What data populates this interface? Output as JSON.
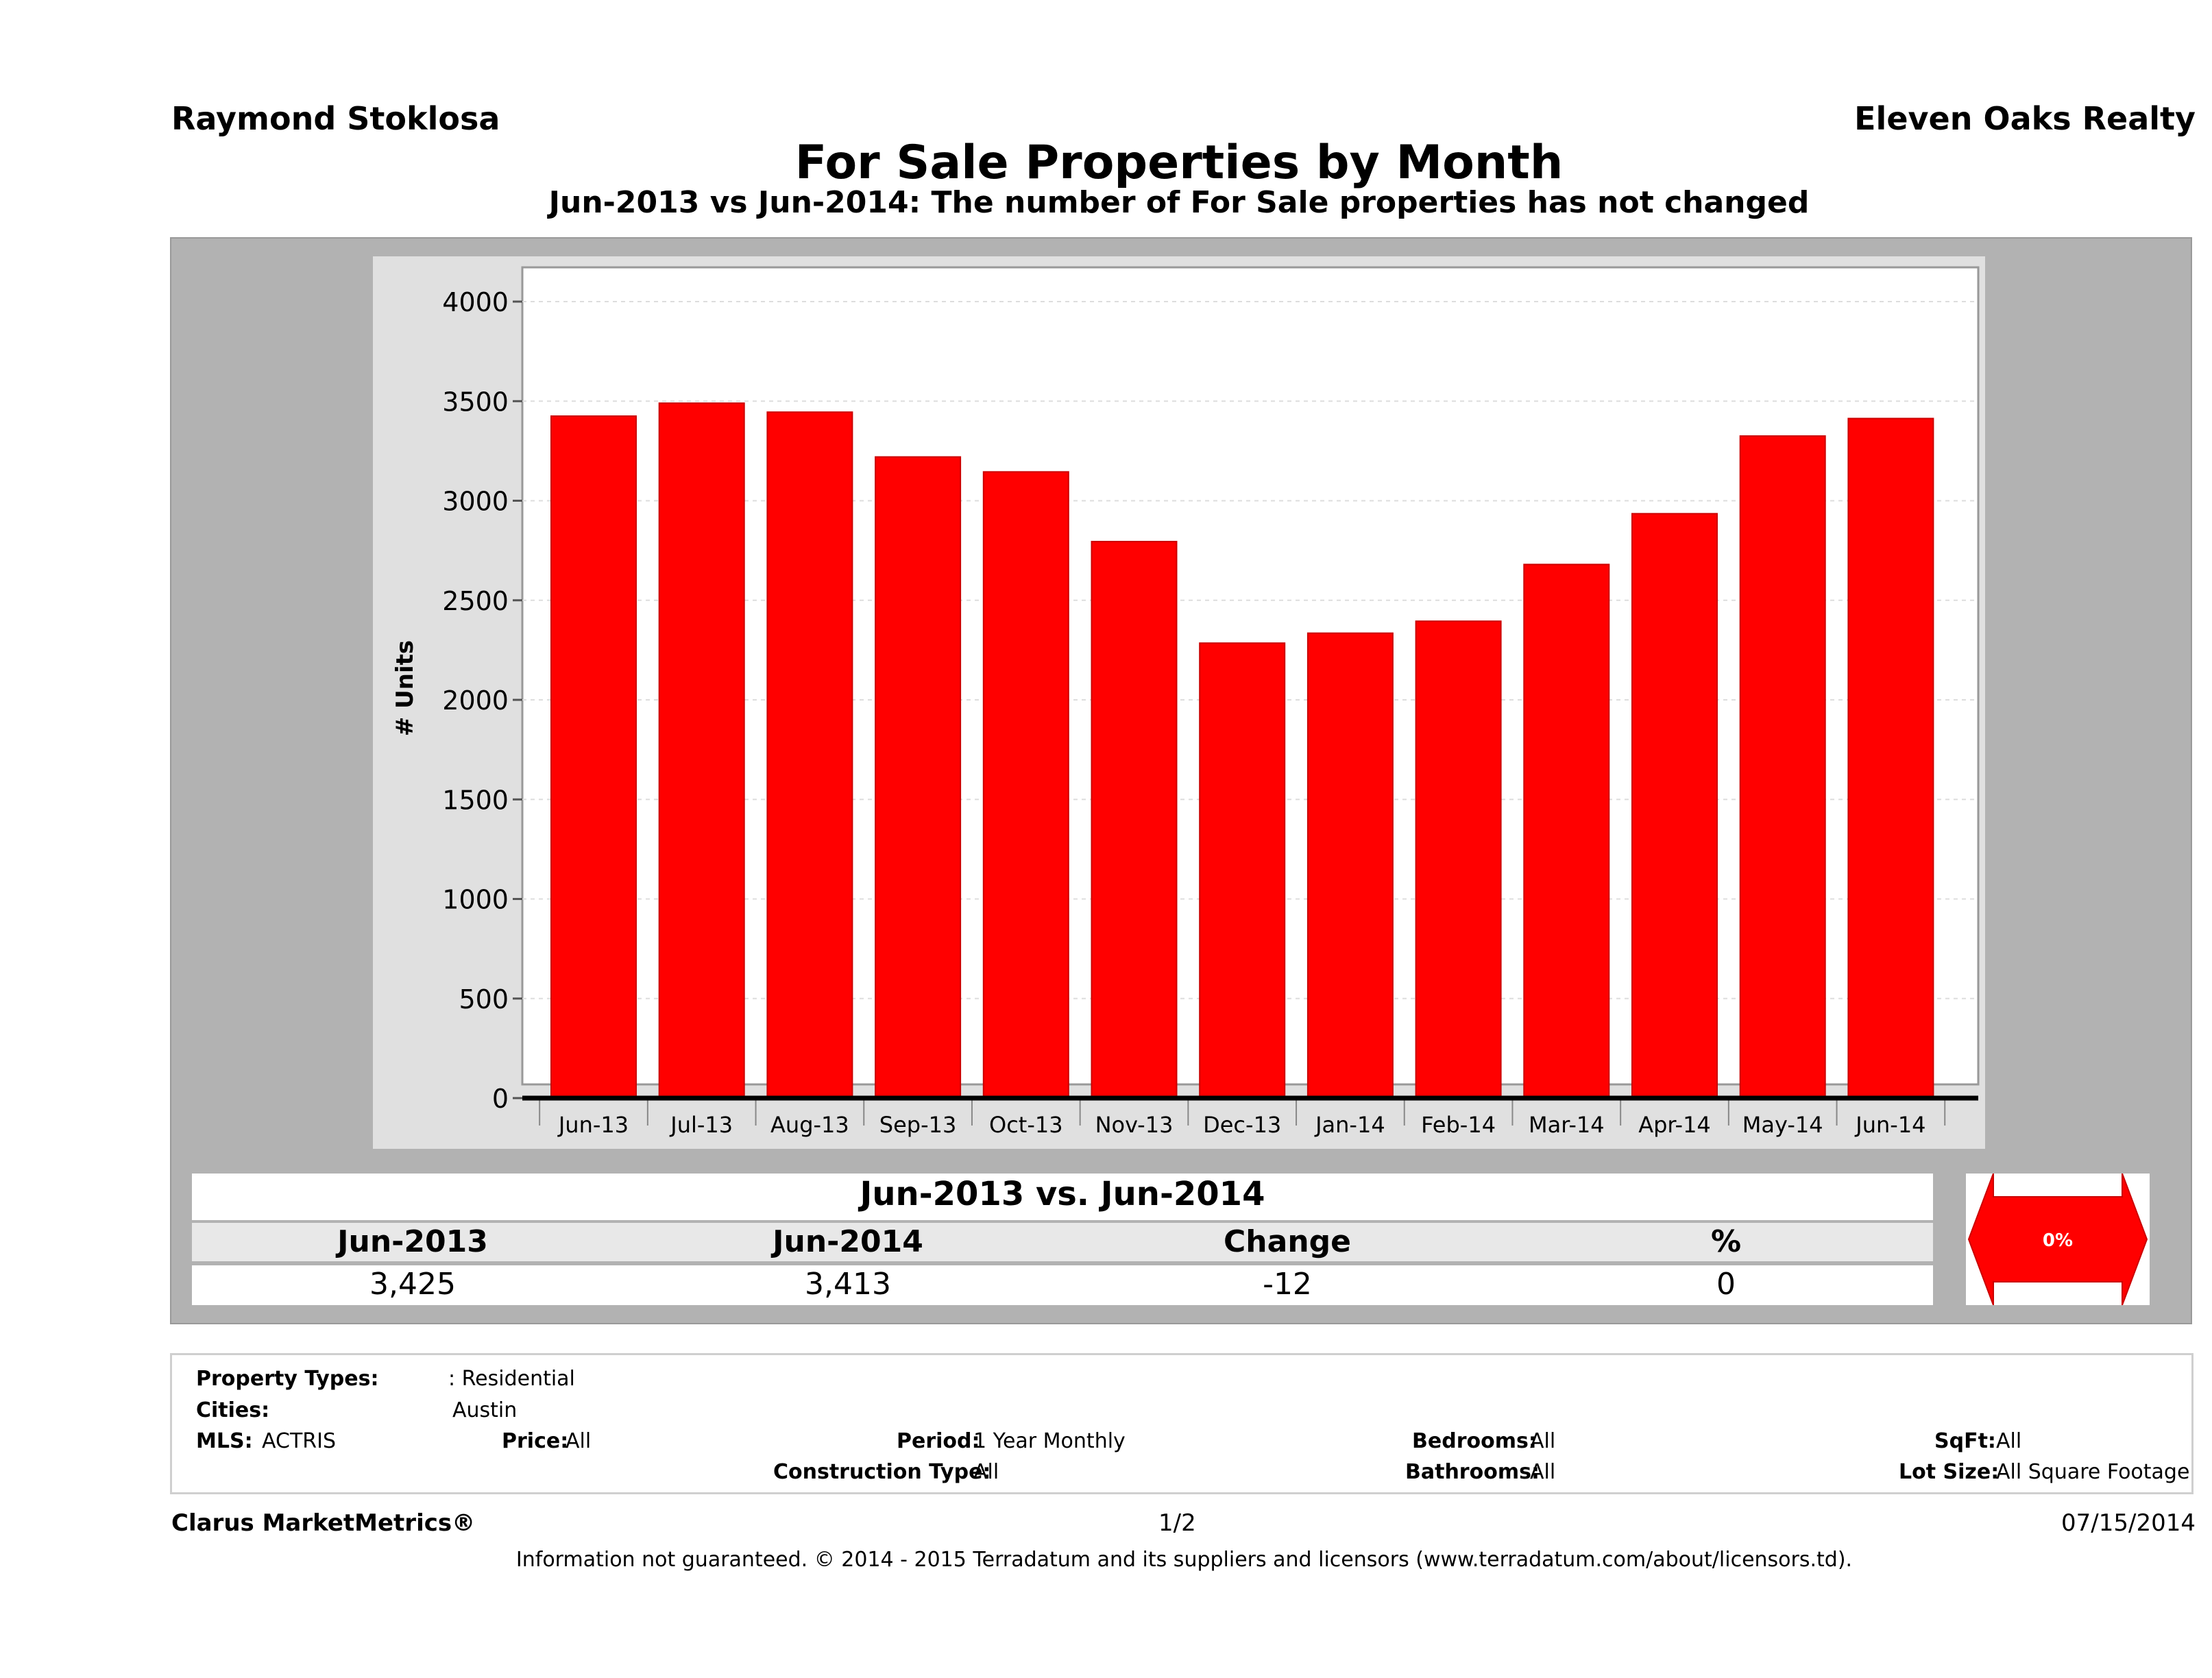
{
  "header": {
    "agent": "Raymond Stoklosa",
    "company": "Eleven Oaks Realty",
    "title": "For Sale Properties by Month",
    "subtitle": "Jun-2013 vs Jun-2014: The number of For Sale  properties has not changed"
  },
  "colors": {
    "bar": "#ff0000",
    "panel": "#b2b2b2",
    "chart_bg": "#e0e0e0"
  },
  "chart_data": {
    "type": "bar",
    "categories": [
      "Jun-13",
      "Jul-13",
      "Aug-13",
      "Sep-13",
      "Oct-13",
      "Nov-13",
      "Dec-13",
      "Jan-14",
      "Feb-14",
      "Mar-14",
      "Apr-14",
      "May-14",
      "Jun-14"
    ],
    "values": [
      3425,
      3490,
      3445,
      3220,
      3145,
      2795,
      2285,
      2335,
      2395,
      2680,
      2935,
      3325,
      3413
    ],
    "ylabel": "# Units",
    "ylim": [
      0,
      4000
    ],
    "yticks": [
      0,
      500,
      1000,
      1500,
      2000,
      2500,
      3000,
      3500,
      4000
    ],
    "grid": true
  },
  "summary": {
    "heading": "Jun-2013 vs. Jun-2014",
    "labels": [
      "Jun-2013",
      "Jun-2014",
      "Change",
      "%"
    ],
    "values": [
      "3,425",
      "3,413",
      "-12",
      "0"
    ],
    "arrow_text": "0%"
  },
  "filters": {
    "property_types_label": "Property Types:",
    "property_types_value": ": Residential",
    "cities_label": "Cities:",
    "cities_value": "Austin",
    "mls_label": "MLS:",
    "mls_value": "ACTRIS",
    "price_label": "Price:",
    "price_value": "All",
    "period_label": "Period:",
    "period_value": "1 Year Monthly",
    "construction_label": "Construction Type:",
    "construction_value": "All",
    "bedrooms_label": "Bedrooms:",
    "bedrooms_value": "All",
    "bathrooms_label": "Bathrooms:",
    "bathrooms_value": "All",
    "sqft_label": "SqFt:",
    "sqft_value": "All",
    "lot_label": "Lot Size:",
    "lot_value": "All Square Footage"
  },
  "footer": {
    "brand": "Clarus MarketMetrics®",
    "page": "1/2",
    "date": "07/15/2014",
    "disclaimer": "Information not guaranteed. © 2014 - 2015 Terradatum and its suppliers and licensors (www.terradatum.com/about/licensors.td)."
  }
}
